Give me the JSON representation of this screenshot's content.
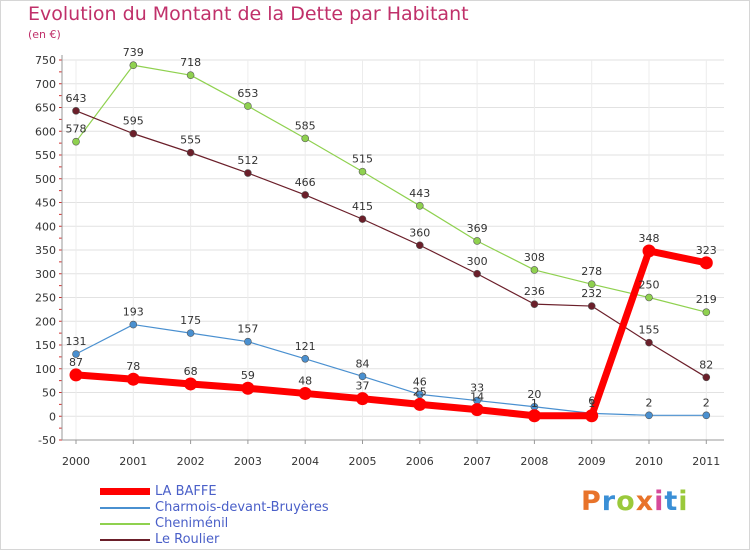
{
  "header": {
    "title": "Evolution du Montant de la Dette par Habitant",
    "unit": "(en €)"
  },
  "logo": {
    "text": "Proxiti",
    "colors": [
      "#e8732a",
      "#3a8fd6",
      "#9ac93b",
      "#e8732a",
      "#d64a9a",
      "#3a8fd6",
      "#9ac93b"
    ]
  },
  "chart_data": {
    "type": "line",
    "title": "Evolution du Montant de la Dette par Habitant",
    "ylabel": "(en €)",
    "xlabel": "",
    "categories": [
      "2000",
      "2001",
      "2002",
      "2003",
      "2004",
      "2005",
      "2006",
      "2007",
      "2008",
      "2009",
      "2010",
      "2011"
    ],
    "ylim": [
      -50,
      750
    ],
    "yticks": [
      "750",
      "700",
      "650",
      "600",
      "550",
      "500",
      "450",
      "400",
      "350",
      "300",
      "250",
      "200",
      "150",
      "100",
      "50",
      "0",
      "-50"
    ],
    "grid": true,
    "legend_position": "bottom-left",
    "series": [
      {
        "name": "Cheniménil",
        "color": "#8fd14f",
        "width": 1.2,
        "marker": 3.5,
        "values": [
          578,
          739,
          718,
          653,
          585,
          515,
          443,
          369,
          308,
          278,
          250,
          219
        ],
        "labels": [
          "578",
          "739",
          "718",
          "653",
          "585",
          "515",
          "443",
          "369",
          "308",
          "278",
          "250",
          "219"
        ]
      },
      {
        "name": "Le Roulier",
        "color": "#6b1f2a",
        "width": 1.2,
        "marker": 3.5,
        "values": [
          643,
          595,
          555,
          512,
          466,
          415,
          360,
          300,
          236,
          232,
          155,
          82
        ],
        "labels": [
          "643",
          "595",
          "555",
          "512",
          "466",
          "415",
          "360",
          "300",
          "236",
          "232",
          "155",
          "82"
        ]
      },
      {
        "name": "Charmois-devant-Bruyères",
        "color": "#4a90d0",
        "width": 1.2,
        "marker": 3.5,
        "values": [
          131,
          193,
          175,
          157,
          121,
          84,
          46,
          33,
          20,
          6,
          2,
          2
        ],
        "labels": [
          "131",
          "193",
          "175",
          "157",
          "121",
          "84",
          "46",
          "33",
          "20",
          "6",
          "2",
          "2"
        ]
      },
      {
        "name": "LA BAFFE",
        "color": "#ff0000",
        "width": 7,
        "marker": 6.5,
        "values": [
          87,
          78,
          68,
          59,
          48,
          37,
          25,
          14,
          1,
          1,
          348,
          323
        ],
        "labels": [
          "87",
          "78",
          "68",
          "59",
          "48",
          "37",
          "25",
          "14",
          "1",
          "1",
          "348",
          "323"
        ]
      }
    ]
  },
  "legend": {
    "items": [
      {
        "label": "LA BAFFE",
        "color": "#ff0000",
        "thickness": 7
      },
      {
        "label": "Charmois-devant-Bruyères",
        "color": "#4a90d0",
        "thickness": 1.5
      },
      {
        "label": "Cheniménil",
        "color": "#8fd14f",
        "thickness": 1.5
      },
      {
        "label": "Le Roulier",
        "color": "#6b1f2a",
        "thickness": 1.5
      }
    ]
  }
}
